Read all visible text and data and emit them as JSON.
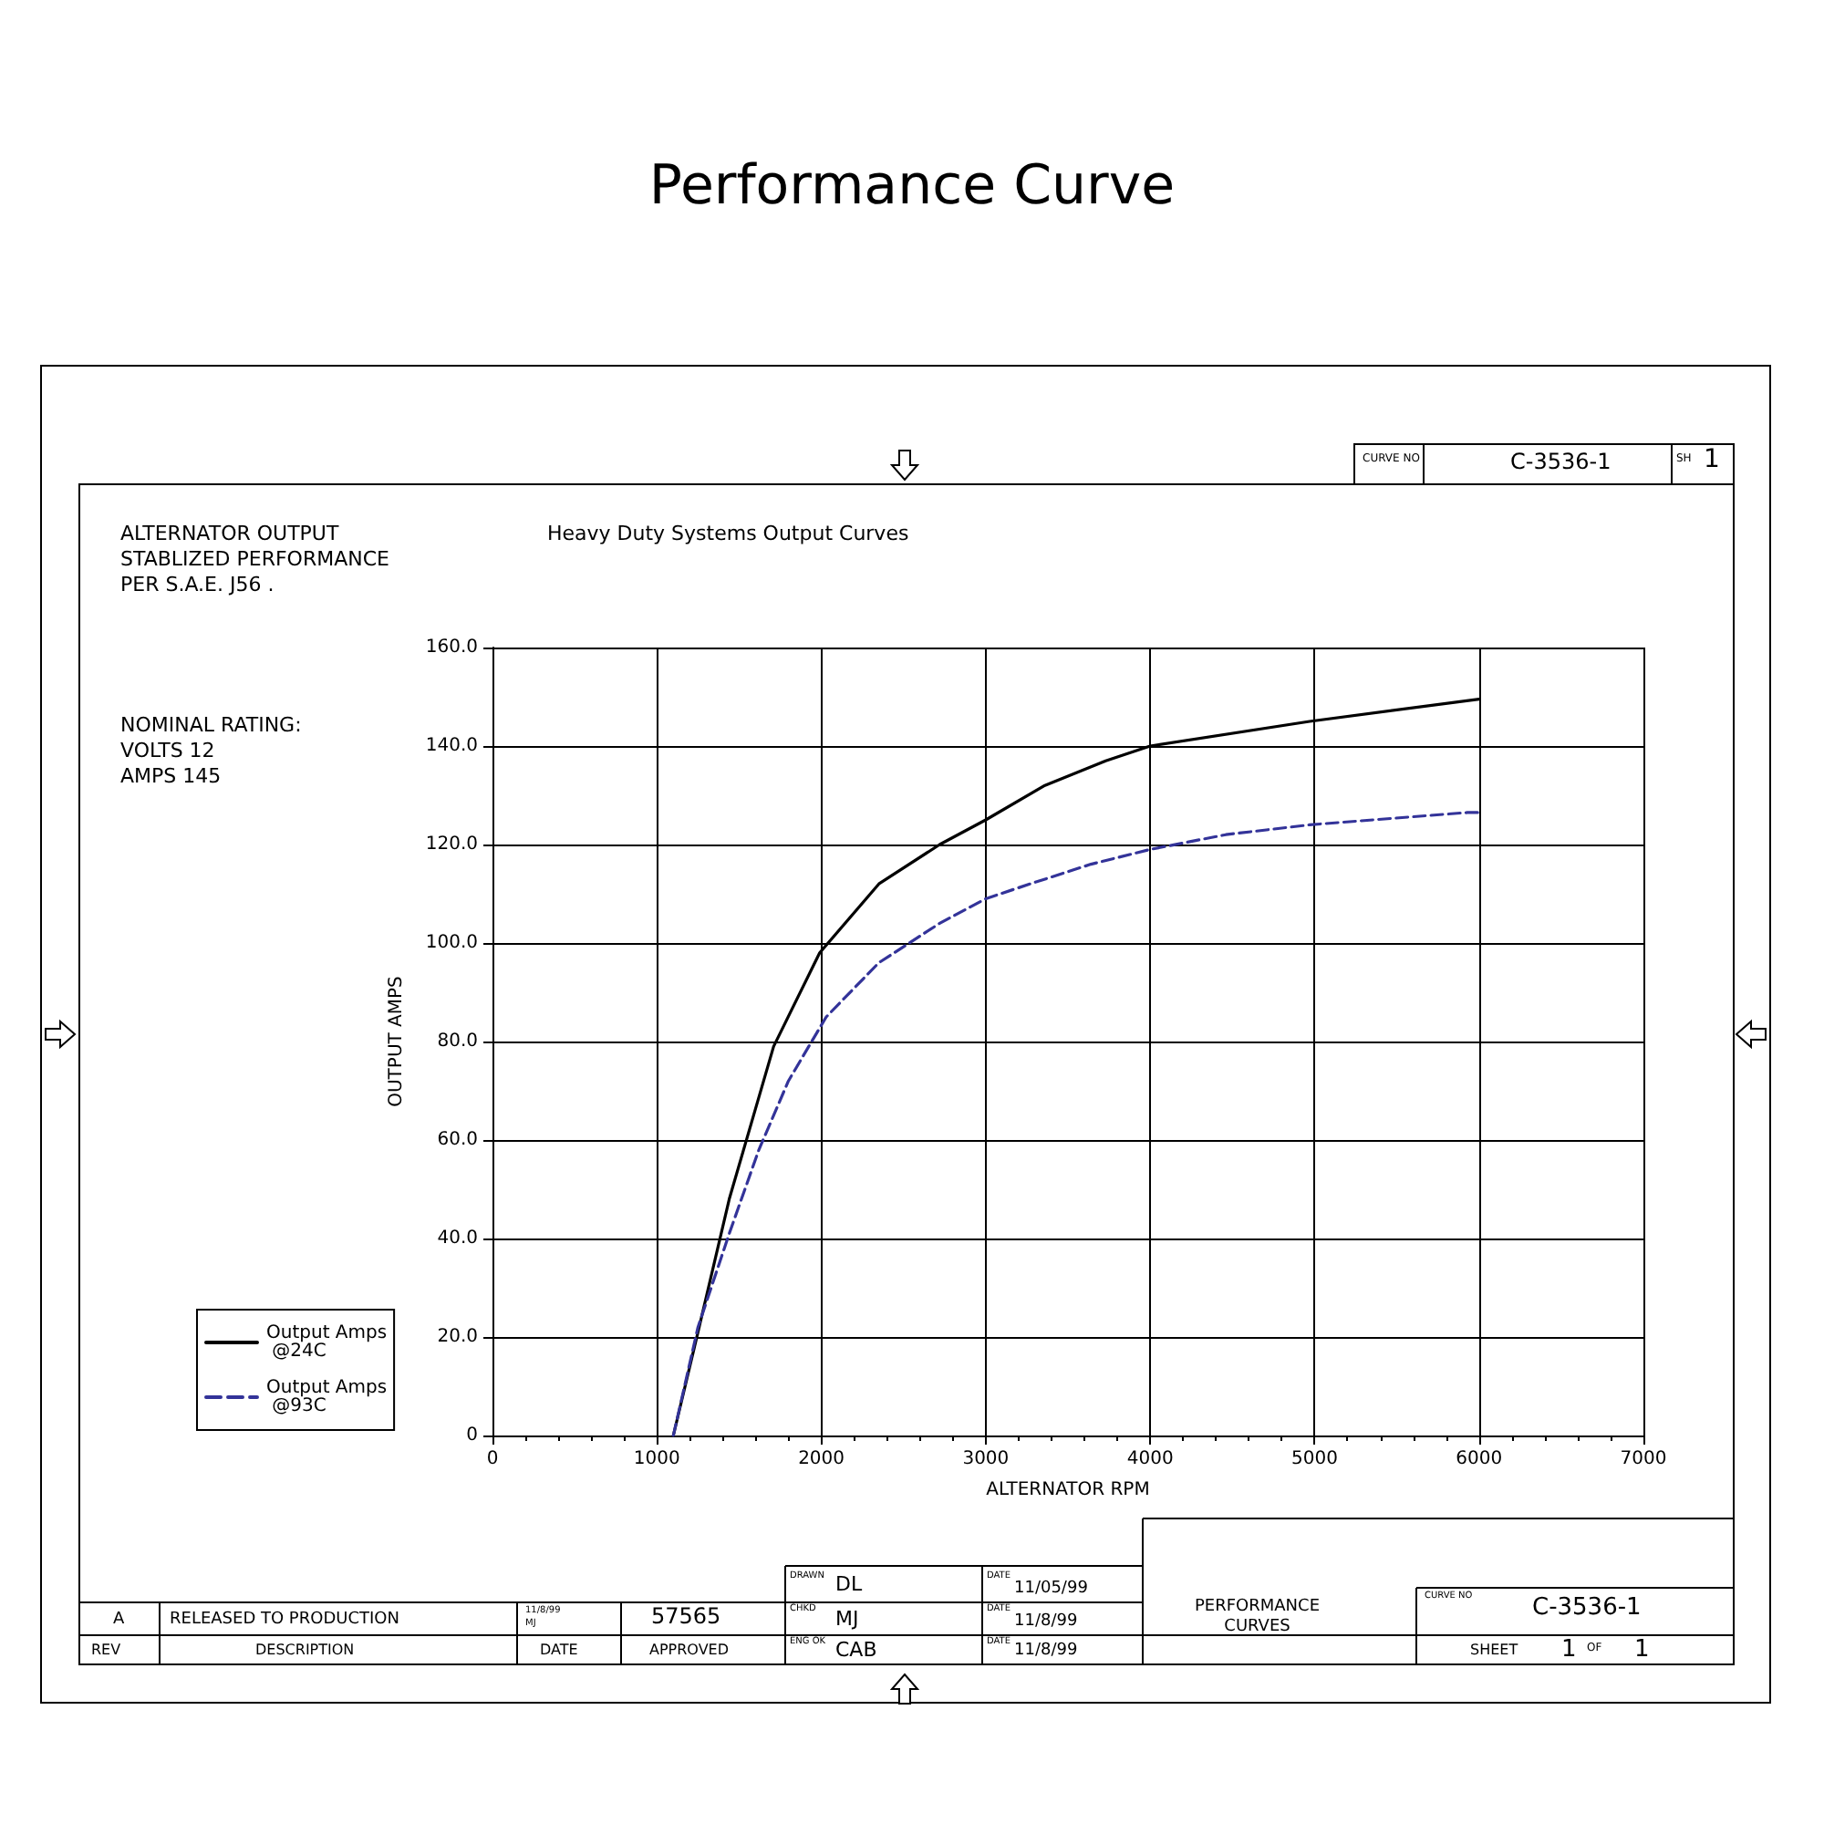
{
  "chart_data": {
    "type": "line",
    "title": "Performance Curve",
    "subtitle": "Heavy Duty Systems Output Curves",
    "xlabel": "ALTERNATOR RPM",
    "ylabel": "OUTPUT AMPS",
    "xlim": [
      0,
      7000
    ],
    "xticks": [
      0,
      1000,
      2000,
      3000,
      4000,
      5000,
      6000,
      7000
    ],
    "ylim": [
      0,
      160
    ],
    "yticks": [
      {
        "value": 0,
        "label": "0"
      },
      {
        "value": 20,
        "label": "20.0"
      },
      {
        "value": 40,
        "label": "40.0"
      },
      {
        "value": 60,
        "label": "60.0"
      },
      {
        "value": 80,
        "label": "80.0"
      },
      {
        "value": 100,
        "label": "100.0"
      },
      {
        "value": 120,
        "label": "120.0"
      },
      {
        "value": 140,
        "label": "140.0"
      },
      {
        "value": 160,
        "label": "160.0"
      }
    ],
    "grid": true,
    "legend": "bottom left",
    "marker": "none",
    "series": [
      {
        "name": "Output Amps @24C",
        "color": "#000000",
        "line_style": "solid",
        "x": [
          1100,
          1250,
          1440,
          1710,
          1990,
          2350,
          2720,
          3000,
          3360,
          3730,
          4000,
          4970,
          6000
        ],
        "values": [
          0,
          21,
          48,
          79,
          98,
          112,
          120,
          125,
          132,
          137,
          140,
          145,
          149.5
        ]
      },
      {
        "name": "Output Amps @93C",
        "color": "#333399",
        "line_style": "dashed",
        "x": [
          1100,
          1250,
          1440,
          1620,
          1800,
          2030,
          2350,
          2720,
          3000,
          3270,
          3640,
          4000,
          4460,
          4970,
          5930,
          6000
        ],
        "values": [
          0,
          22,
          41,
          58,
          72,
          85,
          96,
          104,
          109,
          112,
          116,
          119,
          122,
          124,
          126.5,
          126.5
        ]
      }
    ],
    "annotations": [
      "ALTERNATOR OUTPUT\nSTABLIZED PERFORMANCE\nPER S.A.E. J56 .",
      "NOMINAL RATING:\nVOLTS 12\nAMPS 145",
      "CURVE NO",
      "C-3536-1",
      "SH",
      "1",
      "A",
      "RELEASED TO PRODUCTION",
      "11/8/99",
      "MJ",
      "57565",
      "REV",
      "DESCRIPTION",
      "DATE",
      "APPROVED",
      "DRAWN",
      "DL",
      "DATE",
      "11/05/99",
      "CHKD",
      "MJ",
      "DATE",
      "11/8/99",
      "ENG OK",
      "CAB",
      "DATE",
      "11/8/99",
      "PERFORMANCE\nCURVES",
      "CURVE NO",
      "C-3536-1",
      "SHEET",
      "1",
      "OF",
      "1"
    ]
  }
}
